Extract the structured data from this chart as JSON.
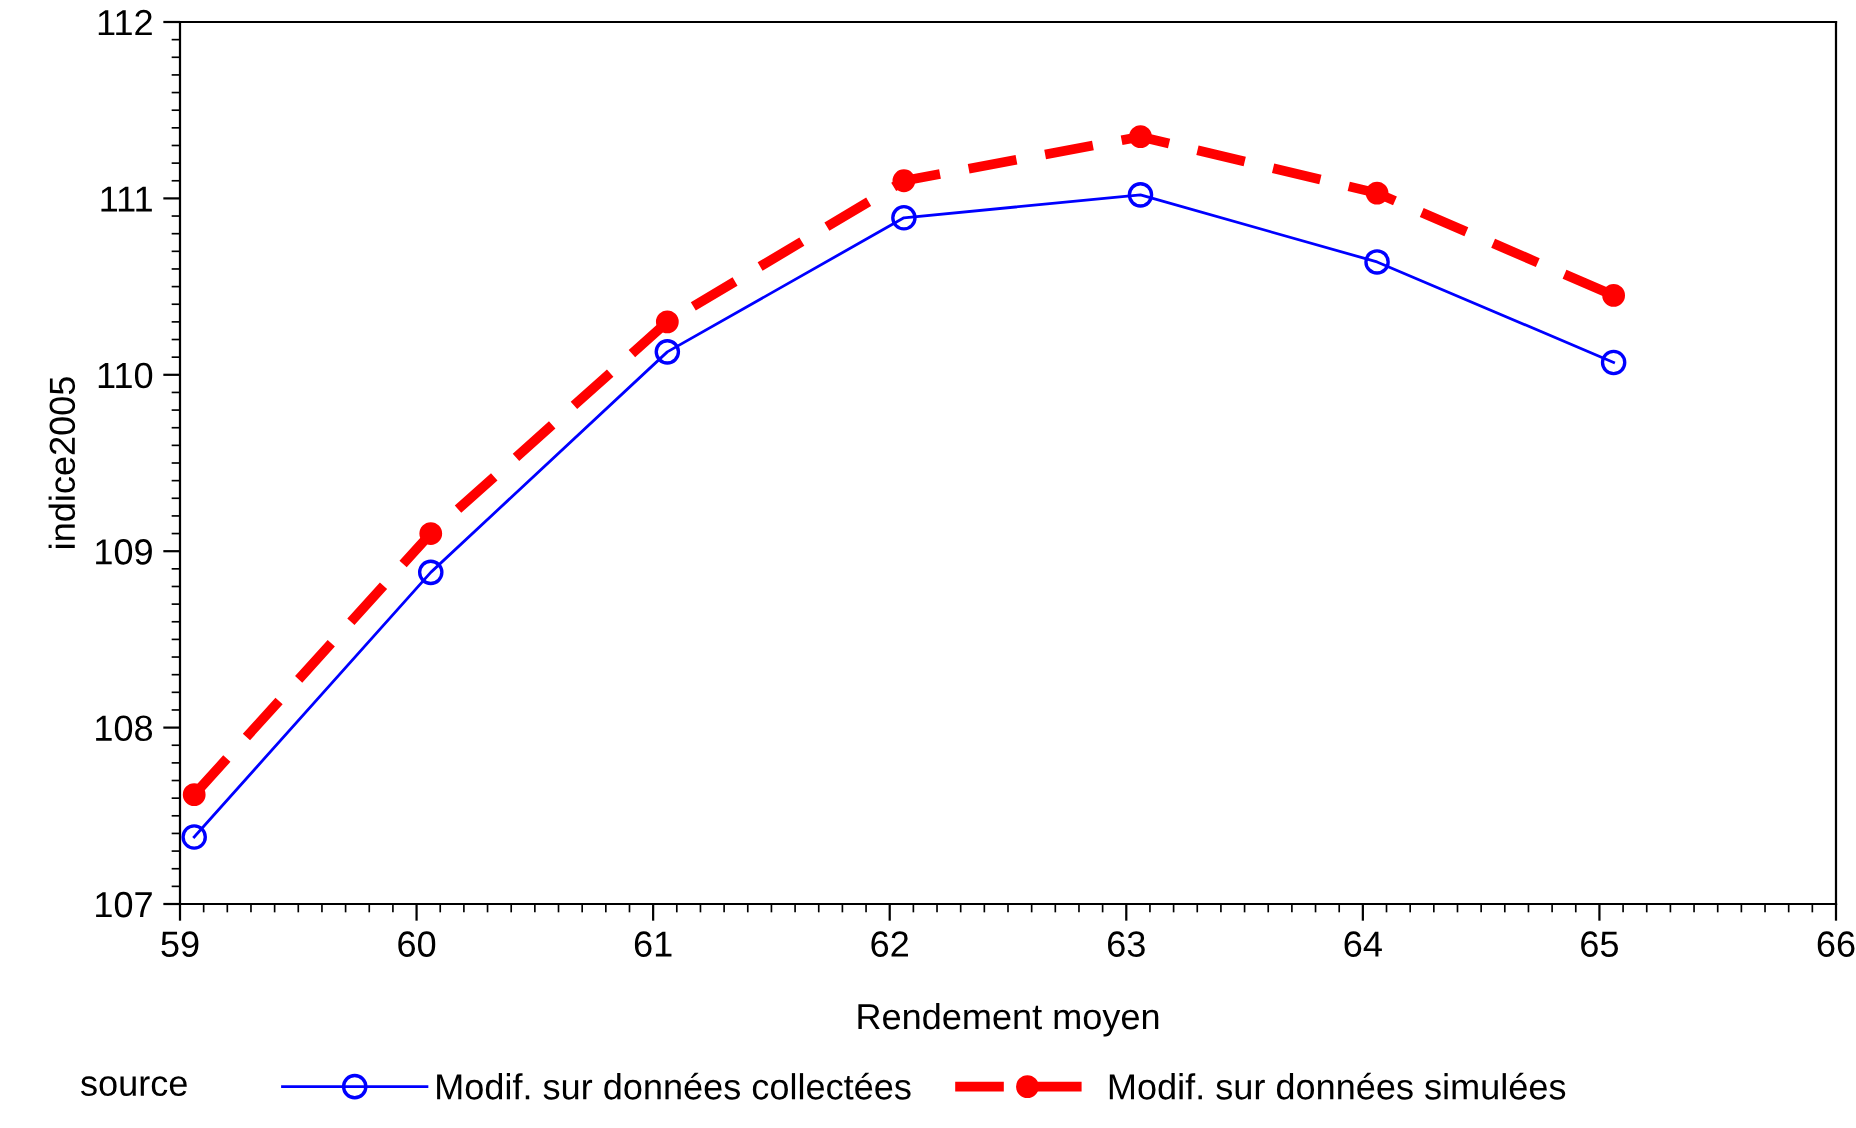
{
  "chart_data": {
    "type": "line",
    "xlabel": "Rendement moyen",
    "ylabel": "indice2005",
    "legend_title": "source",
    "legend": "bottom",
    "xlim": [
      59,
      66
    ],
    "xticks": [
      59,
      60,
      61,
      62,
      63,
      64,
      65,
      66
    ],
    "ylim": [
      107,
      112
    ],
    "yticks": [
      107,
      108,
      109,
      110,
      111,
      112
    ],
    "grid": false,
    "series": [
      {
        "name": "Modif. sur données collectées",
        "color": "#0000ff",
        "marker": "circle",
        "line_style": "solid",
        "x": [
          59.06,
          60.06,
          61.06,
          62.06,
          63.06,
          64.06,
          65.06
        ],
        "values": [
          107.38,
          108.88,
          110.13,
          110.89,
          111.02,
          110.64,
          110.07
        ]
      },
      {
        "name": "Modif. sur données simulées",
        "color": "#ff0000",
        "marker": "circle",
        "line_style": "dashed",
        "x": [
          59.06,
          60.06,
          61.06,
          62.06,
          63.06,
          64.06,
          65.06
        ],
        "values": [
          107.62,
          109.1,
          110.3,
          111.1,
          111.35,
          111.03,
          110.45
        ]
      }
    ]
  }
}
